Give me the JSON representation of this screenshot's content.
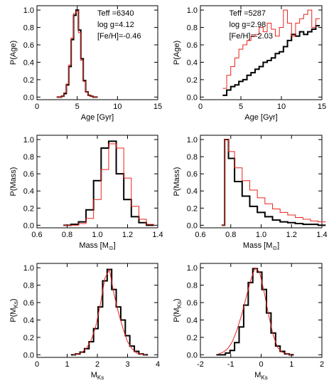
{
  "chart_data": [
    {
      "type": "line",
      "xlabel": "Age [Gyr]",
      "ylabel": "P(Age)",
      "annotations": [
        "Teff =6340",
        "log g=4.12",
        "[Fe/H]=-0.46"
      ],
      "xlim": [
        0,
        15
      ],
      "xticks": [
        0,
        5,
        10,
        15
      ],
      "ylim": [
        -0.03,
        1.05
      ],
      "yticks": [
        {
          "value": 0,
          "label": "0.0"
        },
        0.2,
        0.4,
        0.6,
        0.8,
        {
          "value": 1,
          "label": "1.0"
        }
      ],
      "x": [
        2.6,
        2.9,
        3.2,
        3.5,
        3.8,
        4.1,
        4.4,
        4.7,
        5.0,
        5.3,
        5.6,
        5.9,
        6.2,
        6.5,
        6.8,
        7.1,
        7.4
      ],
      "series": [
        {
          "color": "#000000",
          "drawstyle": "steps",
          "values": [
            0,
            0,
            0.01,
            0.04,
            0.14,
            0.35,
            0.66,
            0.94,
            1.0,
            0.77,
            0.44,
            0.19,
            0.06,
            0.02,
            0.01,
            0,
            0
          ]
        },
        {
          "color": "#e8241c",
          "drawstyle": "steps",
          "values": [
            0,
            0,
            0.01,
            0.05,
            0.15,
            0.37,
            0.68,
            0.96,
            0.99,
            0.74,
            0.42,
            0.18,
            0.06,
            0.02,
            0.01,
            0,
            0
          ]
        }
      ]
    },
    {
      "type": "line",
      "xlabel": "Age [Gyr]",
      "ylabel": "P(Age)",
      "annotations": [
        "Teff =5287",
        "log g=2.98",
        "[Fe/H]=-2.03"
      ],
      "xlim": [
        0,
        15
      ],
      "xticks": [
        0,
        5,
        10,
        15
      ],
      "ylim": [
        -0.03,
        1.05
      ],
      "yticks": [
        {
          "value": 0,
          "label": "0.0"
        },
        0.2,
        0.4,
        0.6,
        0.8,
        {
          "value": 1,
          "label": "1.0"
        }
      ],
      "x": [
        3.0,
        3.5,
        4.0,
        4.5,
        5.0,
        5.5,
        6.0,
        6.5,
        7.0,
        7.5,
        8.0,
        8.5,
        9.0,
        9.5,
        10.0,
        10.5,
        11.0,
        11.5,
        12.0,
        12.5,
        13.0,
        13.5,
        14.0,
        14.5
      ],
      "series": [
        {
          "color": "#000000",
          "drawstyle": "steps",
          "values": [
            0.02,
            0.08,
            0.12,
            0.14,
            0.18,
            0.2,
            0.25,
            0.28,
            0.32,
            0.35,
            0.4,
            0.42,
            0.45,
            0.5,
            0.52,
            0.58,
            0.65,
            0.72,
            0.7,
            0.75,
            0.72,
            0.75,
            0.78,
            0.82
          ]
        },
        {
          "color": "#e8241c",
          "drawstyle": "steps",
          "values": [
            0.1,
            0.25,
            0.35,
            0.45,
            0.55,
            0.6,
            0.65,
            0.7,
            0.72,
            0.8,
            0.75,
            0.85,
            0.78,
            0.7,
            0.8,
            1.0,
            0.85,
            0.7,
            0.85,
            0.9,
            0.95,
            1.0,
            0.8,
            0.9
          ]
        }
      ]
    },
    {
      "type": "line",
      "xlabel": "Mass [M",
      "xlabel_sub": "⊙",
      "xlabel_end": "]",
      "ylabel": "P(Mass)",
      "xlim": [
        0.6,
        1.4
      ],
      "xticks": [
        0.6,
        0.8,
        {
          "value": 1,
          "label": "1.0"
        },
        1.2,
        1.4
      ],
      "ylim": [
        -0.03,
        1.05
      ],
      "yticks": [
        {
          "value": 0,
          "label": "0.0"
        },
        0.2,
        0.4,
        0.6,
        0.8,
        {
          "value": 1,
          "label": "1.0"
        }
      ],
      "x": [
        0.8,
        0.85,
        0.9,
        0.95,
        1.0,
        1.05,
        1.1,
        1.15,
        1.2,
        1.25,
        1.3,
        1.35
      ],
      "series": [
        {
          "color": "#000000",
          "drawstyle": "steps",
          "values": [
            0,
            0.01,
            0.04,
            0.18,
            0.52,
            0.9,
            0.98,
            0.6,
            0.3,
            0.1,
            0.03,
            0
          ]
        },
        {
          "color": "#e8241c",
          "drawstyle": "steps",
          "values": [
            0,
            0,
            0.02,
            0.08,
            0.3,
            0.65,
            0.95,
            0.9,
            0.55,
            0.22,
            0.07,
            0.01
          ]
        }
      ]
    },
    {
      "type": "line",
      "xlabel": "Mass [M",
      "xlabel_sub": "⊙",
      "xlabel_end": "]",
      "ylabel": "P(Mass)",
      "xlim": [
        0.6,
        1.4
      ],
      "xticks": [
        0.6,
        0.8,
        {
          "value": 1,
          "label": "1.0"
        },
        1.2,
        1.4
      ],
      "ylim": [
        -0.03,
        1.05
      ],
      "yticks": [
        {
          "value": 0,
          "label": "0.0"
        },
        0.2,
        0.4,
        0.6,
        0.8,
        {
          "value": 1,
          "label": "1.0"
        }
      ],
      "x": [
        0.75,
        0.77,
        0.8,
        0.85,
        0.9,
        0.95,
        1.0,
        1.05,
        1.1,
        1.15,
        1.2,
        1.25,
        1.3,
        1.35,
        1.4
      ],
      "series": [
        {
          "color": "#000000",
          "drawstyle": "steps",
          "values": [
            0,
            1.0,
            0.78,
            0.51,
            0.34,
            0.22,
            0.15,
            0.1,
            0.06,
            0.04,
            0.03,
            0.02,
            0.01,
            0.01,
            0
          ]
        },
        {
          "color": "#e8241c",
          "drawstyle": "steps",
          "values": [
            0,
            1.0,
            0.86,
            0.67,
            0.52,
            0.41,
            0.32,
            0.25,
            0.19,
            0.15,
            0.12,
            0.09,
            0.07,
            0.05,
            0.04
          ]
        }
      ]
    },
    {
      "type": "line",
      "xlabel": "M",
      "xlabel_sub": "Ks",
      "ylabel": "P(M",
      "ylabel_sub": "Ks",
      "ylabel_end": ")",
      "xlim": [
        0,
        4
      ],
      "xticks": [
        0,
        1,
        2,
        3,
        4
      ],
      "ylim": [
        -0.03,
        1.05
      ],
      "yticks": [
        {
          "value": 0,
          "label": "0.0"
        },
        0.2,
        0.4,
        0.6,
        0.8,
        {
          "value": 1,
          "label": "1.0"
        }
      ],
      "x": [
        1.2,
        1.35,
        1.5,
        1.65,
        1.8,
        1.95,
        2.1,
        2.25,
        2.4,
        2.55,
        2.7,
        2.85,
        3.0,
        3.15,
        3.3,
        3.45,
        3.6
      ],
      "series": [
        {
          "color": "#000000",
          "drawstyle": "steps",
          "values": [
            0,
            0.01,
            0.03,
            0.07,
            0.15,
            0.3,
            0.55,
            0.85,
            0.98,
            0.75,
            0.55,
            0.4,
            0.22,
            0.1,
            0.04,
            0.01,
            0
          ]
        },
        {
          "color": "#e8241c",
          "drawstyle": "line",
          "values": [
            0,
            0.01,
            0.03,
            0.08,
            0.17,
            0.33,
            0.58,
            0.88,
            0.98,
            0.7,
            0.48,
            0.3,
            0.15,
            0.07,
            0.02,
            0.01,
            0
          ]
        }
      ]
    },
    {
      "type": "line",
      "xlabel": "M",
      "xlabel_sub": "Ks",
      "ylabel": "P(M",
      "ylabel_sub": "Ks",
      "ylabel_end": ")",
      "xlim": [
        -2,
        2
      ],
      "xticks": [
        -2,
        -1,
        0,
        1,
        2
      ],
      "ylim": [
        -0.03,
        1.05
      ],
      "yticks": [
        {
          "value": 0,
          "label": "0.0"
        },
        0.2,
        0.4,
        0.6,
        0.8,
        {
          "value": 1,
          "label": "1.0"
        }
      ],
      "x": [
        -1.4,
        -1.25,
        -1.1,
        -0.95,
        -0.8,
        -0.65,
        -0.5,
        -0.35,
        -0.2,
        -0.05,
        0.1,
        0.25,
        0.4,
        0.55,
        0.7,
        0.85,
        1.0
      ],
      "series": [
        {
          "color": "#000000",
          "drawstyle": "steps",
          "values": [
            0,
            0,
            0.02,
            0.05,
            0.14,
            0.32,
            0.57,
            0.83,
            0.99,
            0.95,
            0.75,
            0.48,
            0.25,
            0.1,
            0.04,
            0.01,
            0
          ]
        },
        {
          "color": "#e8241c",
          "drawstyle": "line",
          "values": [
            0.01,
            0.03,
            0.07,
            0.15,
            0.28,
            0.45,
            0.65,
            0.85,
            1.0,
            0.95,
            0.72,
            0.45,
            0.22,
            0.08,
            0.03,
            0.01,
            0
          ]
        }
      ]
    }
  ]
}
